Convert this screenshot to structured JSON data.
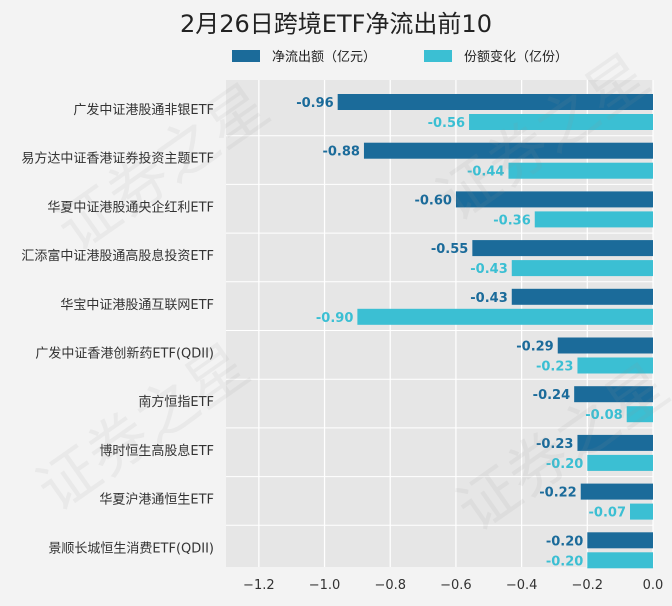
{
  "chart_data": {
    "type": "bar",
    "orientation": "horizontal",
    "title": "2月26日跨境ETF净流出前10",
    "categories": [
      "广发中证港股通非银ETF",
      "易方达中证香港证券投资主题ETF",
      "华夏中证港股通央企红利ETF",
      "汇添富中证港股通高股息投资ETF",
      "华宝中证港股通互联网ETF",
      "广发中证香港创新药ETF(QDII)",
      "南方恒指ETF",
      "博时恒生高股息ETF",
      "华夏沪港通恒生ETF",
      "景顺长城恒生消费ETF(QDII)"
    ],
    "series": [
      {
        "name": "净流出额（亿元）",
        "color": "#1b6b9a",
        "values": [
          -0.96,
          -0.88,
          -0.6,
          -0.55,
          -0.43,
          -0.29,
          -0.24,
          -0.23,
          -0.22,
          -0.2
        ],
        "labels": [
          "-0.96",
          "-0.88",
          "-0.60",
          "-0.55",
          "-0.43",
          "-0.29",
          "-0.24",
          "-0.23",
          "-0.22",
          "-0.20"
        ]
      },
      {
        "name": "份额变化（亿份）",
        "color": "#3bbfd3",
        "values": [
          -0.56,
          -0.44,
          -0.36,
          -0.43,
          -0.9,
          -0.23,
          -0.08,
          -0.2,
          -0.07,
          -0.2
        ],
        "labels": [
          "-0.56",
          "-0.44",
          "-0.36",
          "-0.43",
          "-0.90",
          "-0.23",
          "-0.08",
          "-0.20",
          "-0.07",
          "-0.20"
        ]
      }
    ],
    "xlim": [
      -1.3,
      0.0
    ],
    "xticks": [
      -1.2,
      -1.0,
      -0.8,
      -0.6,
      -0.4,
      -0.2,
      0.0
    ],
    "xtick_labels": [
      "−1.2",
      "−1.0",
      "−0.8",
      "−0.6",
      "−0.4",
      "−0.2",
      "0.0"
    ],
    "grid": true,
    "legend_position": "top"
  },
  "watermark": "证券之星"
}
